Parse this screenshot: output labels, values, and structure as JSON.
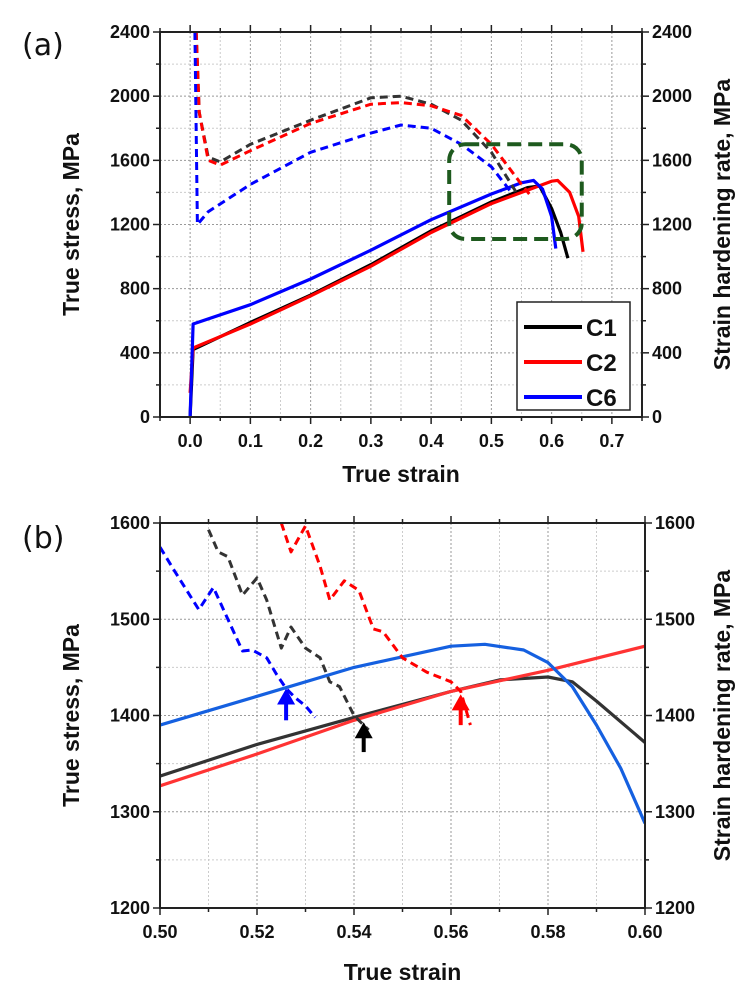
{
  "chart_data": [
    {
      "panel_label": "(a)",
      "type": "line",
      "xlabel": "True strain",
      "ylabel": "True stress, MPa",
      "y2label": "Strain hardening rate, MPa",
      "xlim": [
        -0.05,
        0.75
      ],
      "ylim": [
        0,
        2400
      ],
      "y2lim": [
        0,
        2400
      ],
      "xticks": [
        "0.0",
        "0.1",
        "0.2",
        "0.3",
        "0.4",
        "0.5",
        "0.6",
        "0.7"
      ],
      "yticks": [
        "0",
        "400",
        "800",
        "1200",
        "1600",
        "2000",
        "2400"
      ],
      "grid": true,
      "legend": {
        "placement": "bottom-right",
        "entries": [
          "C1",
          "C2",
          "C6"
        ]
      },
      "highlight_box": {
        "x": [
          0.43,
          0.65
        ],
        "y": [
          1110,
          1700
        ],
        "color": "#1e5a1e",
        "style": "dashed"
      },
      "colors": {
        "C1": "#000000",
        "C2": "#ff0000",
        "C6": "#0000ff"
      },
      "series": [
        {
          "name": "C1",
          "kind": "true stress",
          "style": "solid",
          "color": "#000000",
          "x": [
            0,
            0.005,
            0.1,
            0.2,
            0.3,
            0.4,
            0.5,
            0.56,
            0.58,
            0.6,
            0.615,
            0.627
          ],
          "y": [
            0,
            420,
            590,
            760,
            950,
            1160,
            1340,
            1430,
            1440,
            1300,
            1150,
            990
          ]
        },
        {
          "name": "C2",
          "kind": "true stress",
          "style": "solid",
          "color": "#ff0000",
          "x": [
            0,
            0.005,
            0.1,
            0.2,
            0.3,
            0.4,
            0.5,
            0.6,
            0.61,
            0.63,
            0.645,
            0.652
          ],
          "y": [
            150,
            430,
            580,
            755,
            940,
            1150,
            1330,
            1470,
            1475,
            1400,
            1250,
            1030
          ]
        },
        {
          "name": "C6",
          "kind": "true stress",
          "style": "solid",
          "color": "#0000ff",
          "x": [
            0,
            0.005,
            0.1,
            0.2,
            0.3,
            0.4,
            0.5,
            0.55,
            0.57,
            0.585,
            0.6,
            0.607
          ],
          "y": [
            0,
            580,
            700,
            860,
            1040,
            1230,
            1390,
            1460,
            1475,
            1420,
            1250,
            1050
          ]
        },
        {
          "name": "C1",
          "kind": "strain hardening rate",
          "style": "dashed",
          "color": "#333333",
          "x": [
            0.01,
            0.015,
            0.03,
            0.05,
            0.1,
            0.2,
            0.3,
            0.35,
            0.4,
            0.45,
            0.5,
            0.543
          ],
          "y": [
            2400,
            1900,
            1620,
            1590,
            1700,
            1850,
            1990,
            2000,
            1950,
            1850,
            1650,
            1390
          ]
        },
        {
          "name": "C2",
          "kind": "strain hardening rate",
          "style": "dashed",
          "color": "#ff0000",
          "x": [
            0.01,
            0.015,
            0.03,
            0.05,
            0.1,
            0.2,
            0.3,
            0.35,
            0.4,
            0.45,
            0.5,
            0.55,
            0.563
          ],
          "y": [
            2400,
            1900,
            1600,
            1570,
            1660,
            1830,
            1950,
            1960,
            1940,
            1880,
            1700,
            1450,
            1390
          ]
        },
        {
          "name": "C6",
          "kind": "strain hardening rate",
          "style": "dashed",
          "color": "#0000ff",
          "x": [
            0.008,
            0.012,
            0.03,
            0.1,
            0.2,
            0.3,
            0.35,
            0.4,
            0.45,
            0.5,
            0.533
          ],
          "y": [
            2400,
            1200,
            1280,
            1450,
            1650,
            1770,
            1820,
            1800,
            1700,
            1560,
            1400
          ]
        }
      ]
    },
    {
      "panel_label": "(b)",
      "type": "line",
      "xlabel": "True strain",
      "ylabel": "True stress, MPa",
      "y2label": "Strain hardening rate, MPa",
      "xlim": [
        0.5,
        0.6
      ],
      "ylim": [
        1200,
        1600
      ],
      "y2lim": [
        1200,
        1600
      ],
      "xticks": [
        "0.50",
        "0.52",
        "0.54",
        "0.56",
        "0.58",
        "0.60"
      ],
      "yticks": [
        "1200",
        "1300",
        "1400",
        "1500",
        "1600"
      ],
      "grid": true,
      "series": [
        {
          "name": "C1",
          "kind": "true stress",
          "style": "solid",
          "color": "#333333",
          "x": [
            0.5,
            0.52,
            0.54,
            0.56,
            0.57,
            0.58,
            0.585,
            0.59,
            0.6
          ],
          "y": [
            1337,
            1370,
            1398,
            1425,
            1437,
            1440,
            1435,
            1415,
            1372
          ]
        },
        {
          "name": "C2",
          "kind": "true stress",
          "style": "solid",
          "color": "#ff3333",
          "x": [
            0.5,
            0.52,
            0.54,
            0.56,
            0.58,
            0.6
          ],
          "y": [
            1327,
            1360,
            1395,
            1425,
            1447,
            1472
          ]
        },
        {
          "name": "C6",
          "kind": "true stress",
          "style": "solid",
          "color": "#1560e0",
          "x": [
            0.5,
            0.52,
            0.54,
            0.56,
            0.567,
            0.575,
            0.58,
            0.585,
            0.59,
            0.595,
            0.6
          ],
          "y": [
            1390,
            1420,
            1450,
            1472,
            1474,
            1468,
            1455,
            1430,
            1390,
            1345,
            1288
          ]
        },
        {
          "name": "C1",
          "kind": "strain hardening rate",
          "style": "dashed",
          "color": "#333333",
          "x": [
            0.51,
            0.512,
            0.514,
            0.517,
            0.52,
            0.522,
            0.525,
            0.527,
            0.53,
            0.533,
            0.535,
            0.537,
            0.54,
            0.543
          ],
          "y": [
            1593,
            1570,
            1565,
            1525,
            1543,
            1520,
            1470,
            1492,
            1470,
            1460,
            1435,
            1430,
            1400,
            1385
          ]
        },
        {
          "name": "C2",
          "kind": "strain hardening rate",
          "style": "dashed",
          "color": "#ff0000",
          "x": [
            0.525,
            0.527,
            0.53,
            0.533,
            0.535,
            0.538,
            0.541,
            0.544,
            0.546,
            0.55,
            0.555,
            0.56,
            0.562,
            0.564
          ],
          "y": [
            1600,
            1570,
            1597,
            1555,
            1520,
            1540,
            1530,
            1490,
            1487,
            1460,
            1445,
            1435,
            1425,
            1390
          ]
        },
        {
          "name": "C6",
          "kind": "strain hardening rate",
          "style": "dashed",
          "color": "#0000ff",
          "x": [
            0.5,
            0.503,
            0.508,
            0.511,
            0.514,
            0.517,
            0.519,
            0.522,
            0.524,
            0.526,
            0.528,
            0.53,
            0.532
          ],
          "y": [
            1575,
            1550,
            1510,
            1533,
            1500,
            1467,
            1468,
            1460,
            1443,
            1428,
            1418,
            1410,
            1398
          ]
        }
      ],
      "arrows": [
        {
          "series": "C6",
          "x": 0.526,
          "y_tip": 1428,
          "y_base": 1395,
          "color": "#0000ff"
        },
        {
          "series": "C1",
          "x": 0.542,
          "y_tip": 1393,
          "y_base": 1362,
          "color": "#000000"
        },
        {
          "series": "C2",
          "x": 0.562,
          "y_tip": 1422,
          "y_base": 1390,
          "color": "#ff0000"
        }
      ]
    }
  ]
}
